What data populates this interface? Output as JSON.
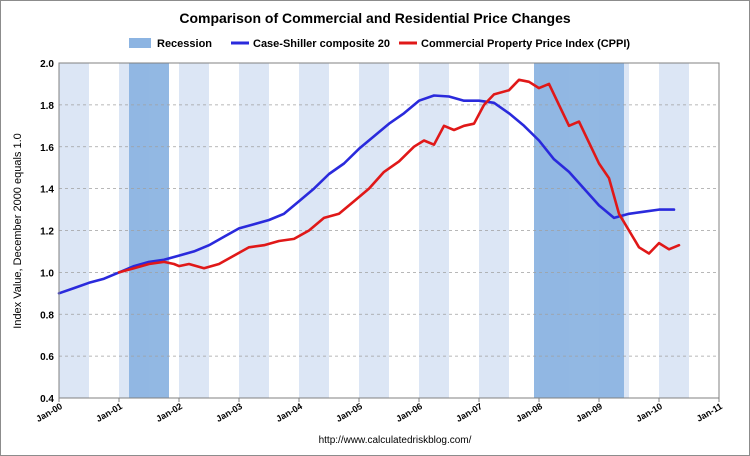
{
  "chart_data": {
    "type": "line",
    "title": "Comparison of Commercial and Residential Price Changes",
    "ylabel": "Index Value, December 2000 equals 1.0",
    "xlabel": "",
    "source": "http://www.calculatedriskblog.com/",
    "ylim": [
      0.4,
      2.0
    ],
    "yticks": [
      "0.4",
      "0.6",
      "0.8",
      "1.0",
      "1.2",
      "1.4",
      "1.6",
      "1.8",
      "2.0"
    ],
    "xlim": [
      "2000-01",
      "2011-01"
    ],
    "xticks": [
      "Jan-00",
      "Jan-01",
      "Jan-02",
      "Jan-03",
      "Jan-04",
      "Jan-05",
      "Jan-06",
      "Jan-07",
      "Jan-08",
      "Jan-09",
      "Jan-10",
      "Jan-11"
    ],
    "grid": true,
    "legend_position": "top-center",
    "legend": {
      "recession": "Recession",
      "case_shiller": "Case-Shiller composite 20",
      "cppi": "Commercial Property Price Index (CPPI)"
    },
    "colors": {
      "recession": "#8cb4e2",
      "case_shiller": "#2a2adc",
      "cppi": "#e01818",
      "plot_bg_stripe": "#dce6f5",
      "plot_bg": "#ffffff"
    },
    "recessions": [
      {
        "start": "2001-03",
        "end": "2001-11"
      },
      {
        "start": "2007-12",
        "end": "2009-06"
      }
    ],
    "series": [
      {
        "name": "Case-Shiller composite 20",
        "points": [
          [
            "2000-01",
            0.9
          ],
          [
            "2000-04",
            0.925
          ],
          [
            "2000-07",
            0.95
          ],
          [
            "2000-10",
            0.97
          ],
          [
            "2001-01",
            1.0
          ],
          [
            "2001-04",
            1.03
          ],
          [
            "2001-07",
            1.05
          ],
          [
            "2001-10",
            1.06
          ],
          [
            "2002-01",
            1.08
          ],
          [
            "2002-04",
            1.1
          ],
          [
            "2002-07",
            1.13
          ],
          [
            "2002-10",
            1.17
          ],
          [
            "2003-01",
            1.21
          ],
          [
            "2003-04",
            1.23
          ],
          [
            "2003-07",
            1.25
          ],
          [
            "2003-10",
            1.28
          ],
          [
            "2004-01",
            1.34
          ],
          [
            "2004-04",
            1.4
          ],
          [
            "2004-07",
            1.47
          ],
          [
            "2004-10",
            1.52
          ],
          [
            "2005-01",
            1.59
          ],
          [
            "2005-04",
            1.65
          ],
          [
            "2005-07",
            1.71
          ],
          [
            "2005-10",
            1.76
          ],
          [
            "2006-01",
            1.82
          ],
          [
            "2006-04",
            1.845
          ],
          [
            "2006-07",
            1.84
          ],
          [
            "2006-10",
            1.82
          ],
          [
            "2007-01",
            1.82
          ],
          [
            "2007-04",
            1.81
          ],
          [
            "2007-07",
            1.76
          ],
          [
            "2007-10",
            1.7
          ],
          [
            "2008-01",
            1.63
          ],
          [
            "2008-04",
            1.54
          ],
          [
            "2008-07",
            1.48
          ],
          [
            "2008-10",
            1.4
          ],
          [
            "2009-01",
            1.32
          ],
          [
            "2009-04",
            1.26
          ],
          [
            "2009-07",
            1.28
          ],
          [
            "2009-10",
            1.29
          ],
          [
            "2010-01",
            1.3
          ],
          [
            "2010-04",
            1.3
          ]
        ]
      },
      {
        "name": "Commercial Property Price Index (CPPI)",
        "points": [
          [
            "2001-01",
            1.0
          ],
          [
            "2001-04",
            1.02
          ],
          [
            "2001-07",
            1.04
          ],
          [
            "2001-10",
            1.05
          ],
          [
            "2001-12",
            1.04
          ],
          [
            "2002-01",
            1.03
          ],
          [
            "2002-03",
            1.04
          ],
          [
            "2002-06",
            1.02
          ],
          [
            "2002-09",
            1.04
          ],
          [
            "2002-12",
            1.08
          ],
          [
            "2003-03",
            1.12
          ],
          [
            "2003-06",
            1.13
          ],
          [
            "2003-09",
            1.15
          ],
          [
            "2003-12",
            1.16
          ],
          [
            "2004-03",
            1.2
          ],
          [
            "2004-06",
            1.26
          ],
          [
            "2004-09",
            1.28
          ],
          [
            "2004-12",
            1.34
          ],
          [
            "2005-03",
            1.4
          ],
          [
            "2005-06",
            1.48
          ],
          [
            "2005-09",
            1.53
          ],
          [
            "2005-12",
            1.6
          ],
          [
            "2006-02",
            1.63
          ],
          [
            "2006-04",
            1.61
          ],
          [
            "2006-06",
            1.7
          ],
          [
            "2006-08",
            1.68
          ],
          [
            "2006-10",
            1.7
          ],
          [
            "2006-12",
            1.71
          ],
          [
            "2007-02",
            1.8
          ],
          [
            "2007-04",
            1.85
          ],
          [
            "2007-07",
            1.87
          ],
          [
            "2007-09",
            1.92
          ],
          [
            "2007-11",
            1.91
          ],
          [
            "2008-01",
            1.88
          ],
          [
            "2008-03",
            1.9
          ],
          [
            "2008-05",
            1.8
          ],
          [
            "2008-07",
            1.7
          ],
          [
            "2008-09",
            1.72
          ],
          [
            "2008-11",
            1.62
          ],
          [
            "2009-01",
            1.52
          ],
          [
            "2009-03",
            1.45
          ],
          [
            "2009-05",
            1.28
          ],
          [
            "2009-07",
            1.2
          ],
          [
            "2009-09",
            1.12
          ],
          [
            "2009-11",
            1.09
          ],
          [
            "2010-01",
            1.14
          ],
          [
            "2010-03",
            1.11
          ],
          [
            "2010-05",
            1.13
          ]
        ]
      }
    ]
  }
}
